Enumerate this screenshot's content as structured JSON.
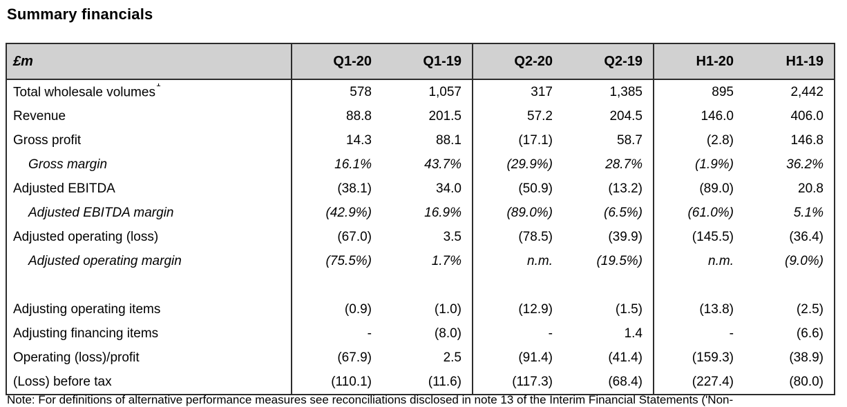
{
  "page": {
    "title": "Summary financials"
  },
  "table": {
    "unit_label": "£m",
    "columns": [
      "Q1-20",
      "Q1-19",
      "Q2-20",
      "Q2-19",
      "H1-20",
      "H1-19"
    ],
    "rows": [
      {
        "label": "Total wholesale volumes",
        "superscript": "1",
        "style": "normal",
        "values": [
          "578",
          "1,057",
          "317",
          "1,385",
          "895",
          "2,442"
        ]
      },
      {
        "label": "Revenue",
        "style": "normal",
        "values": [
          "88.8",
          "201.5",
          "57.2",
          "204.5",
          "146.0",
          "406.0"
        ]
      },
      {
        "label": "Gross profit",
        "style": "normal",
        "values": [
          "14.3",
          "88.1",
          "(17.1)",
          "58.7",
          "(2.8)",
          "146.8"
        ]
      },
      {
        "label": "Gross margin",
        "style": "italic-indent",
        "values": [
          "16.1%",
          "43.7%",
          "(29.9%)",
          "28.7%",
          "(1.9%)",
          "36.2%"
        ]
      },
      {
        "label": "Adjusted EBITDA",
        "style": "normal",
        "values": [
          "(38.1)",
          "34.0",
          "(50.9)",
          "(13.2)",
          "(89.0)",
          "20.8"
        ]
      },
      {
        "label": "Adjusted EBITDA margin",
        "style": "italic-indent",
        "values": [
          "(42.9%)",
          "16.9%",
          "(89.0%)",
          "(6.5%)",
          "(61.0%)",
          "5.1%"
        ]
      },
      {
        "label": "Adjusted operating (loss)",
        "style": "normal",
        "values": [
          "(67.0)",
          "3.5",
          "(78.5)",
          "(39.9)",
          "(145.5)",
          "(36.4)"
        ]
      },
      {
        "label": "Adjusted operating margin",
        "style": "italic-indent",
        "values": [
          "(75.5%)",
          "1.7%",
          "n.m.",
          "(19.5%)",
          "n.m.",
          "(9.0%)"
        ]
      },
      {
        "label": "",
        "style": "spacer",
        "values": [
          "",
          "",
          "",
          "",
          "",
          ""
        ]
      },
      {
        "label": "Adjusting operating items",
        "style": "normal",
        "values": [
          "(0.9)",
          "(1.0)",
          "(12.9)",
          "(1.5)",
          "(13.8)",
          "(2.5)"
        ]
      },
      {
        "label": "Adjusting financing items",
        "style": "normal",
        "values": [
          "-",
          "(8.0)",
          "-",
          "1.4",
          "-",
          "(6.6)"
        ]
      },
      {
        "label": "Operating (loss)/profit",
        "style": "normal",
        "values": [
          "(67.9)",
          "2.5",
          "(91.4)",
          "(41.4)",
          "(159.3)",
          "(38.9)"
        ]
      },
      {
        "label": "(Loss) before tax",
        "style": "normal",
        "values": [
          "(110.1)",
          "(11.6)",
          "(117.3)",
          "(68.4)",
          "(227.4)",
          "(80.0)"
        ]
      }
    ]
  },
  "footnote": {
    "text": "Note: For definitions of alternative performance measures see reconciliations disclosed in note 13 of the Interim Financial Statements ('Non-",
    "truncated": true
  },
  "colors": {
    "header_bg": "#d1d1d1",
    "border": "#2b2b2b",
    "text": "#000000",
    "page_bg": "#ffffff"
  }
}
